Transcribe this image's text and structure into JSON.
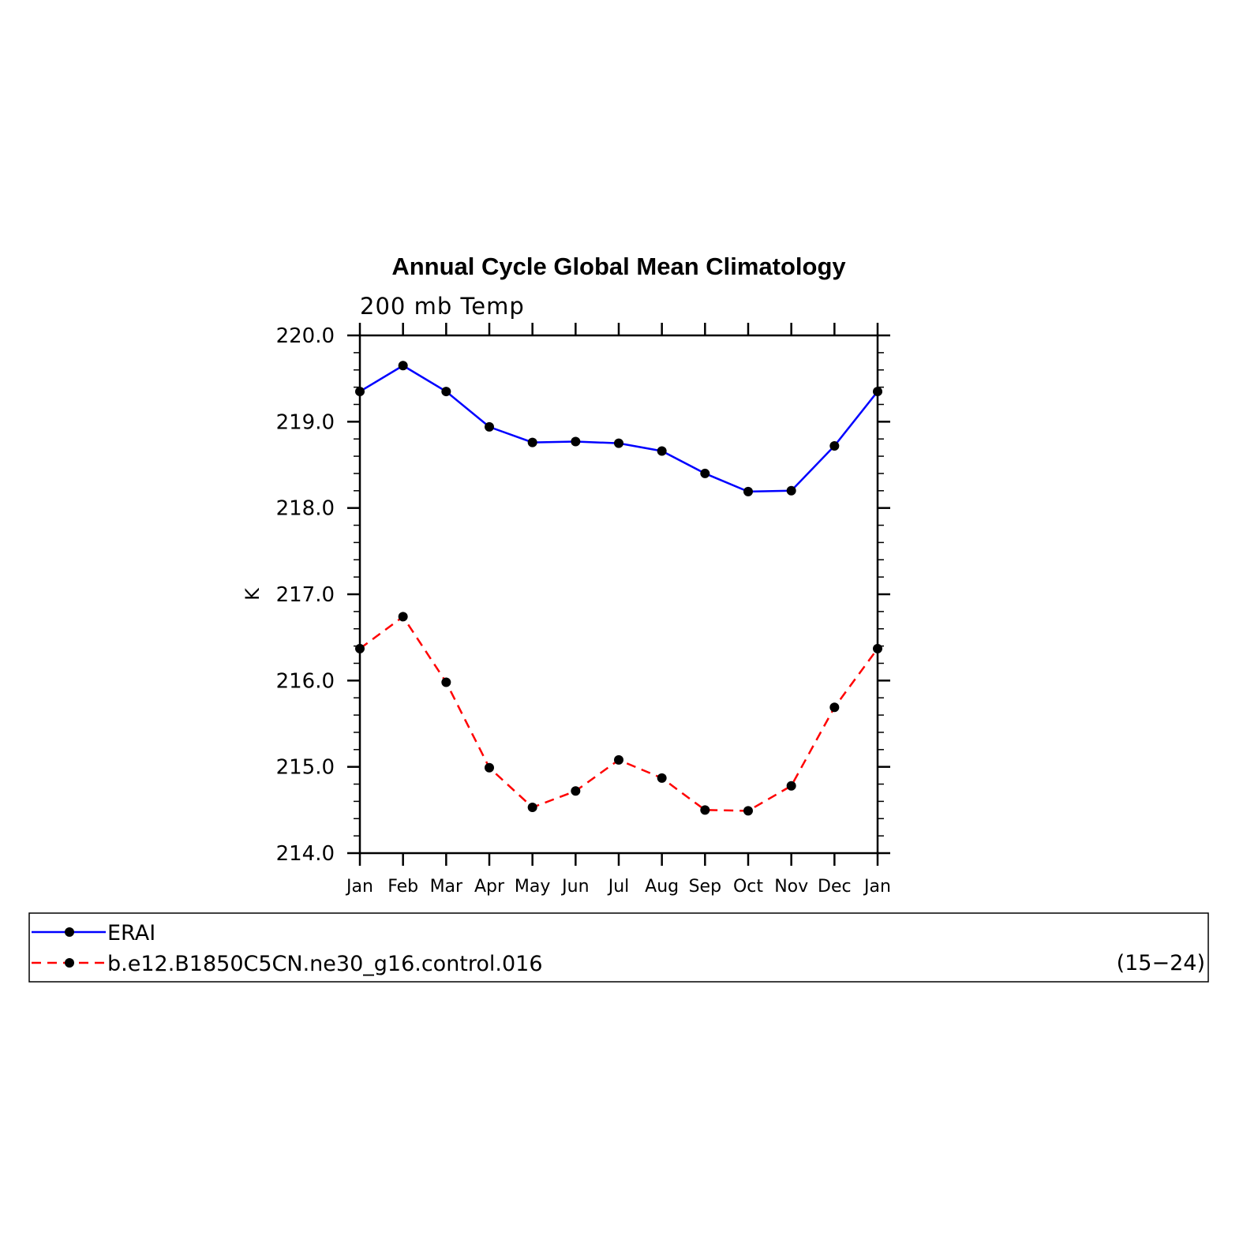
{
  "chart_data": {
    "type": "line",
    "title": "Annual Cycle Global Mean Climatology",
    "subtitle": "200 mb Temp",
    "xlabel": "",
    "ylabel": "K",
    "categories": [
      "Jan",
      "Feb",
      "Mar",
      "Apr",
      "May",
      "Jun",
      "Jul",
      "Aug",
      "Sep",
      "Oct",
      "Nov",
      "Dec",
      "Jan"
    ],
    "ylim": [
      214.0,
      220.0
    ],
    "yticks": [
      "214.0",
      "215.0",
      "216.0",
      "217.0",
      "218.0",
      "219.0",
      "220.0"
    ],
    "grid": false,
    "legend_position": "bottom",
    "legend_note": "(15−24)",
    "series": [
      {
        "name": "ERAI",
        "color": "#0000ff",
        "dash": "solid",
        "values": [
          219.35,
          219.65,
          219.35,
          218.94,
          218.76,
          218.77,
          218.75,
          218.66,
          218.4,
          218.19,
          218.2,
          218.72,
          219.35
        ]
      },
      {
        "name": "b.e12.B1850C5CN.ne30_g16.control.016",
        "color": "#ff0000",
        "dash": "dashed",
        "values": [
          216.37,
          216.74,
          215.98,
          214.99,
          214.53,
          214.72,
          215.08,
          214.87,
          214.5,
          214.49,
          214.78,
          215.69,
          216.37
        ]
      }
    ]
  }
}
